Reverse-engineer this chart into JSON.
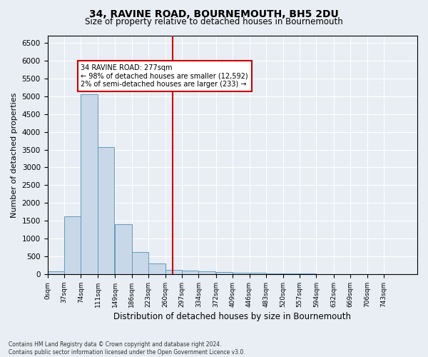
{
  "title": "34, RAVINE ROAD, BOURNEMOUTH, BH5 2DU",
  "subtitle": "Size of property relative to detached houses in Bournemouth",
  "xlabel": "Distribution of detached houses by size in Bournemouth",
  "ylabel": "Number of detached properties",
  "bar_color": "#c8d8e8",
  "bar_edge_color": "#6699bb",
  "background_color": "#e8eef4",
  "property_line_x": 277,
  "property_line_color": "#cc0000",
  "bin_width": 37,
  "bin_starts": [
    0,
    37,
    74,
    111,
    149,
    186,
    223,
    260,
    297,
    334,
    372,
    409,
    446,
    483,
    520,
    557,
    594,
    632,
    669,
    706,
    743
  ],
  "bar_heights": [
    70,
    1620,
    5060,
    3580,
    1400,
    620,
    300,
    120,
    100,
    80,
    55,
    40,
    30,
    20,
    15,
    10,
    8,
    5,
    5,
    3,
    3
  ],
  "tick_labels": [
    "0sqm",
    "37sqm",
    "74sqm",
    "111sqm",
    "149sqm",
    "186sqm",
    "223sqm",
    "260sqm",
    "297sqm",
    "334sqm",
    "372sqm",
    "409sqm",
    "446sqm",
    "483sqm",
    "520sqm",
    "557sqm",
    "594sqm",
    "632sqm",
    "669sqm",
    "706sqm",
    "743sqm"
  ],
  "ylim": [
    0,
    6700
  ],
  "yticks": [
    0,
    500,
    1000,
    1500,
    2000,
    2500,
    3000,
    3500,
    4000,
    4500,
    5000,
    5500,
    6000,
    6500
  ],
  "annotation_text": "34 RAVINE ROAD: 277sqm\n← 98% of detached houses are smaller (12,592)\n2% of semi-detached houses are larger (233) →",
  "annotation_box_color": "#ffffff",
  "annotation_box_edgecolor": "#cc0000",
  "footer_line1": "Contains HM Land Registry data © Crown copyright and database right 2024.",
  "footer_line2": "Contains public sector information licensed under the Open Government Licence v3.0."
}
